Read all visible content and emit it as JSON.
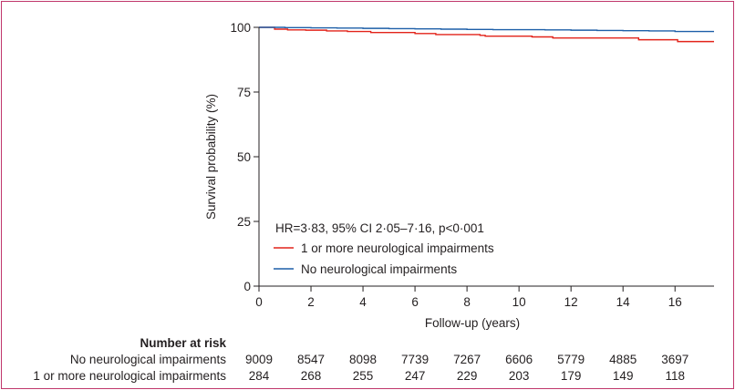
{
  "chart_data": {
    "type": "line",
    "title": "",
    "xlabel": "Follow-up (years)",
    "ylabel": "Survival probability (%)",
    "xlim": [
      0,
      17.5
    ],
    "ylim": [
      0,
      100
    ],
    "xticks": [
      0,
      2,
      4,
      6,
      8,
      10,
      12,
      14,
      16
    ],
    "yticks": [
      0,
      25,
      50,
      75,
      100
    ],
    "grid": false,
    "legend_position": "bottom-left",
    "annotation": "HR=3·83, 95% CI 2·05–7·16, p<0·001",
    "series": [
      {
        "name": "1 or more neurological impairments",
        "color": "#e2231a",
        "points": [
          [
            0,
            100
          ],
          [
            0.6,
            99.3
          ],
          [
            1.1,
            99.0
          ],
          [
            1.8,
            98.9
          ],
          [
            2.6,
            98.6
          ],
          [
            3.4,
            98.4
          ],
          [
            4.3,
            98.0
          ],
          [
            5.2,
            98.0
          ],
          [
            6.0,
            97.6
          ],
          [
            6.8,
            97.2
          ],
          [
            7.6,
            97.2
          ],
          [
            8.5,
            96.9
          ],
          [
            8.7,
            96.6
          ],
          [
            9.8,
            96.6
          ],
          [
            10.5,
            96.3
          ],
          [
            11.3,
            95.9
          ],
          [
            12.2,
            95.9
          ],
          [
            13.2,
            95.9
          ],
          [
            14.1,
            95.9
          ],
          [
            14.6,
            95.2
          ],
          [
            15.5,
            95.2
          ],
          [
            16.1,
            94.5
          ],
          [
            17.5,
            94.5
          ]
        ]
      },
      {
        "name": "No neurological impairments",
        "color": "#1d5fa8",
        "points": [
          [
            0,
            100
          ],
          [
            1.0,
            99.9
          ],
          [
            2.0,
            99.8
          ],
          [
            3.0,
            99.7
          ],
          [
            4.0,
            99.6
          ],
          [
            5.0,
            99.5
          ],
          [
            6.0,
            99.4
          ],
          [
            7.0,
            99.3
          ],
          [
            8.0,
            99.2
          ],
          [
            9.0,
            99.1
          ],
          [
            10.0,
            99.1
          ],
          [
            11.0,
            99.0
          ],
          [
            12.0,
            98.9
          ],
          [
            13.0,
            98.8
          ],
          [
            14.0,
            98.7
          ],
          [
            15.0,
            98.6
          ],
          [
            16.0,
            98.4
          ],
          [
            17.5,
            98.4
          ]
        ]
      }
    ],
    "risk_table": {
      "header": "Number at risk",
      "rows": [
        {
          "label": "No neurological impairments",
          "values": [
            "9009",
            "8547",
            "8098",
            "7739",
            "7267",
            "6606",
            "5779",
            "4885",
            "3697"
          ]
        },
        {
          "label": "1 or more neurological impairments",
          "values": [
            "284",
            "268",
            "255",
            "247",
            "229",
            "203",
            "179",
            "149",
            "118"
          ]
        }
      ]
    }
  },
  "colors": {
    "frame": "#c0366b",
    "axis": "#231f20"
  }
}
